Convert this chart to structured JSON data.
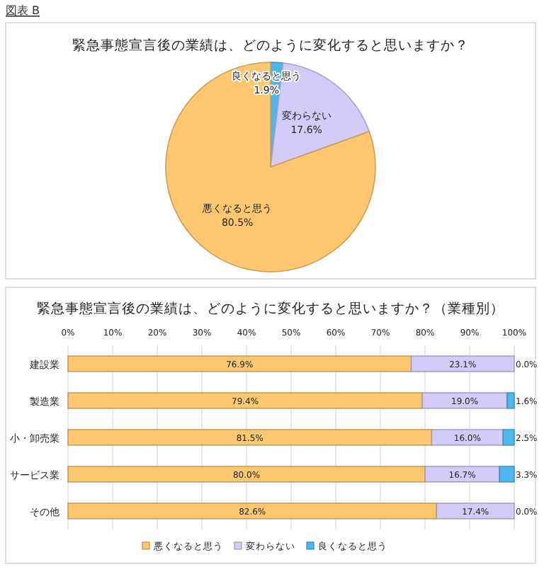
{
  "chart_data": [
    {
      "type": "pie",
      "title": "緊急事態宣言後の業績は、どのように変化すると思いますか？",
      "annotations": [
        "図表 B"
      ],
      "categories": [
        "良くなると思う",
        "変わらない",
        "悪くなると思う"
      ],
      "values": [
        1.9,
        17.6,
        80.5
      ],
      "value_labels": [
        "1.9%",
        "17.6%",
        "80.5%"
      ],
      "colors": [
        "#4db8ef",
        "#d3ccf9",
        "#ffc76f"
      ]
    },
    {
      "type": "bar",
      "orientation": "horizontal",
      "stacked": true,
      "title": "緊急事態宣言後の業績は、どのように変化すると思いますか？（業種別）",
      "categories": [
        "建設業",
        "製造業",
        "小・卸売業",
        "サービス業",
        "その他"
      ],
      "xlim": [
        0,
        100
      ],
      "xticks": [
        {
          "value": 0,
          "label": "0%"
        },
        {
          "value": 10,
          "label": "10%"
        },
        {
          "value": 20,
          "label": "20%"
        },
        {
          "value": 30,
          "label": "30%"
        },
        {
          "value": 40,
          "label": "40%"
        },
        {
          "value": 50,
          "label": "50%"
        },
        {
          "value": 60,
          "label": "60%"
        },
        {
          "value": 70,
          "label": "70%"
        },
        {
          "value": 80,
          "label": "80%"
        },
        {
          "value": 90,
          "label": "90%"
        },
        {
          "value": 100,
          "label": "100%"
        }
      ],
      "grid": "x",
      "legend": "bottom",
      "series": [
        {
          "name": "悪くなると思う",
          "color": "#ffc76f",
          "values": [
            76.9,
            79.4,
            81.5,
            80.0,
            82.6
          ],
          "value_labels": [
            "76.9%",
            "79.4%",
            "81.5%",
            "80.0%",
            "82.6%"
          ]
        },
        {
          "name": "変わらない",
          "color": "#d3ccf9",
          "values": [
            23.1,
            19.0,
            16.0,
            16.7,
            17.4
          ],
          "value_labels": [
            "23.1%",
            "19.0%",
            "16.0%",
            "16.7%",
            "17.4%"
          ]
        },
        {
          "name": "良くなると思う",
          "color": "#4db8ef",
          "values": [
            0.0,
            1.6,
            2.5,
            3.3,
            0.0
          ],
          "value_labels": [
            "0.0%",
            "1.6%",
            "2.5%",
            "3.3%",
            "0.0%"
          ]
        }
      ]
    }
  ]
}
